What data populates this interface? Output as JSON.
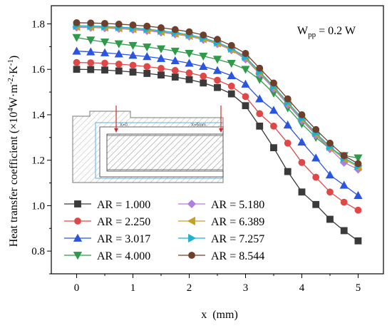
{
  "chart_data": {
    "type": "line",
    "xlabel": "x  (mm)",
    "ylabel": "Heat transfer coefficient (×10",
    "ylabel_sup": "4",
    "ylabel_unit": "W·m",
    "ylabel_unit_sup1": "-2",
    "ylabel_unit_mid": "·K",
    "ylabel_unit_sup2": "-1",
    "ylabel_close": ")",
    "annotation": "W",
    "annotation_sub": "pp",
    "annotation_rest": " = 0.2 W",
    "xlim": [
      -0.45,
      5.45
    ],
    "ylim": [
      0.7,
      1.88
    ],
    "xticks": [
      0,
      1,
      2,
      3,
      4,
      5
    ],
    "xtick_labels": [
      "0",
      "1",
      "2",
      "3",
      "4",
      "5"
    ],
    "yticks": [
      0.8,
      1.0,
      1.2,
      1.4,
      1.6,
      1.8
    ],
    "ytick_labels": [
      "0.8",
      "1.0",
      "1.2",
      "1.4",
      "1.6",
      "1.8"
    ],
    "legend_position": "bottom-left",
    "x": [
      0,
      0.25,
      0.5,
      0.75,
      1.0,
      1.25,
      1.5,
      1.75,
      2.0,
      2.25,
      2.5,
      2.75,
      3.0,
      3.25,
      3.5,
      3.75,
      4.0,
      4.25,
      4.5,
      4.75,
      5.0
    ],
    "series": [
      {
        "name": "AR = 1.000",
        "color": "#3a3a3a",
        "marker": "square",
        "values": [
          1.6,
          1.599,
          1.597,
          1.593,
          1.588,
          1.582,
          1.575,
          1.566,
          1.555,
          1.54,
          1.52,
          1.492,
          1.44,
          1.35,
          1.255,
          1.15,
          1.06,
          1.005,
          0.94,
          0.89,
          0.845
        ]
      },
      {
        "name": "AR = 2.250",
        "color": "#e04848",
        "marker": "circle",
        "values": [
          1.63,
          1.629,
          1.627,
          1.623,
          1.618,
          1.612,
          1.604,
          1.595,
          1.584,
          1.57,
          1.552,
          1.526,
          1.48,
          1.405,
          1.35,
          1.275,
          1.19,
          1.125,
          1.06,
          1.015,
          0.98
        ]
      },
      {
        "name": "AR = 3.017",
        "color": "#2a55e0",
        "marker": "triangle-up",
        "values": [
          1.68,
          1.677,
          1.673,
          1.668,
          1.662,
          1.656,
          1.648,
          1.638,
          1.627,
          1.613,
          1.595,
          1.572,
          1.535,
          1.47,
          1.42,
          1.355,
          1.28,
          1.21,
          1.135,
          1.09,
          1.045
        ]
      },
      {
        "name": "AR = 4.000",
        "color": "#2e9a4a",
        "marker": "triangle-down",
        "values": [
          1.74,
          1.729,
          1.72,
          1.712,
          1.705,
          1.698,
          1.69,
          1.68,
          1.67,
          1.658,
          1.644,
          1.626,
          1.6,
          1.555,
          1.495,
          1.43,
          1.36,
          1.3,
          1.25,
          1.22,
          1.21
        ]
      },
      {
        "name": "AR = 5.180",
        "color": "#b07ee0",
        "marker": "diamond",
        "values": [
          1.785,
          1.784,
          1.782,
          1.779,
          1.775,
          1.77,
          1.763,
          1.755,
          1.745,
          1.731,
          1.712,
          1.685,
          1.645,
          1.58,
          1.515,
          1.445,
          1.375,
          1.31,
          1.25,
          1.19,
          1.16
        ]
      },
      {
        "name": "AR = 6.389",
        "color": "#c8a020",
        "marker": "triangle-left",
        "values": [
          1.788,
          1.787,
          1.785,
          1.782,
          1.778,
          1.773,
          1.766,
          1.758,
          1.748,
          1.734,
          1.715,
          1.688,
          1.65,
          1.585,
          1.52,
          1.45,
          1.38,
          1.315,
          1.255,
          1.205,
          1.17
        ]
      },
      {
        "name": "AR = 7.257",
        "color": "#20b0d0",
        "marker": "triangle-right",
        "values": [
          1.792,
          1.791,
          1.789,
          1.786,
          1.782,
          1.777,
          1.77,
          1.762,
          1.752,
          1.738,
          1.719,
          1.692,
          1.655,
          1.59,
          1.525,
          1.455,
          1.385,
          1.32,
          1.26,
          1.21,
          1.175
        ]
      },
      {
        "name": "AR = 8.544",
        "color": "#6e3f2a",
        "marker": "circle",
        "values": [
          1.805,
          1.804,
          1.802,
          1.799,
          1.795,
          1.79,
          1.783,
          1.775,
          1.765,
          1.751,
          1.732,
          1.705,
          1.67,
          1.605,
          1.54,
          1.47,
          1.4,
          1.335,
          1.275,
          1.22,
          1.185
        ]
      }
    ],
    "inset": {
      "label_left": "X=0",
      "label_right": "X=5mm"
    }
  }
}
